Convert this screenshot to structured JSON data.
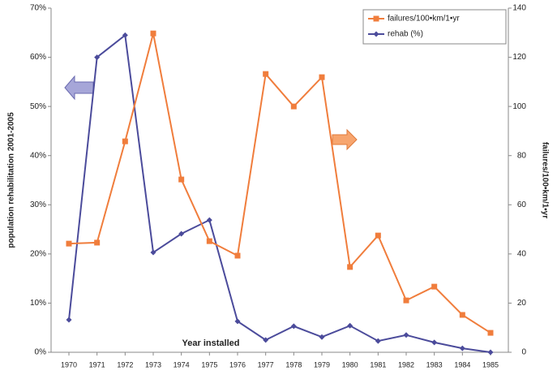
{
  "chart_data": {
    "type": "line",
    "ylabel": "population rehabilitation 2001-2005",
    "y2label": "failures/100•km/1•yr",
    "xlabel": "Year installed",
    "categories": [
      "1970",
      "1971",
      "1972",
      "1973",
      "1974",
      "1975",
      "1976",
      "1977",
      "1978",
      "1979",
      "1980",
      "1981",
      "1982",
      "1983",
      "1984",
      "1985"
    ],
    "series": [
      {
        "name": "failures/100•km/1•yr",
        "color": "#f07d3c",
        "axis": "y2",
        "marker": "square",
        "values": [
          44.2,
          44.6,
          85.8,
          129.7,
          70.3,
          45.2,
          39.3,
          113.2,
          100,
          111.9,
          34.7,
          47.5,
          21.1,
          26.7,
          15.2,
          7.9
        ]
      },
      {
        "name": "rehab (%)",
        "color": "#4b4b9b",
        "axis": "y",
        "marker": "diamond",
        "values": [
          6.6,
          60,
          64.5,
          20.3,
          24.1,
          26.9,
          6.3,
          2.5,
          5.3,
          3.1,
          5.4,
          2.3,
          3.5,
          2.0,
          0.8,
          0
        ]
      }
    ],
    "ylim": [
      0,
      70
    ],
    "yticks": [
      {
        "value": 0,
        "label": "0%"
      },
      {
        "value": 10,
        "label": "10%"
      },
      {
        "value": 20,
        "label": "20%"
      },
      {
        "value": 30,
        "label": "30%"
      },
      {
        "value": 40,
        "label": "40%"
      },
      {
        "value": 50,
        "label": "50%"
      },
      {
        "value": 60,
        "label": "60%"
      },
      {
        "value": 70,
        "label": "70%"
      }
    ],
    "y2lim": [
      0,
      140
    ],
    "y2ticks": [
      0,
      20,
      40,
      60,
      80,
      100,
      120,
      140
    ],
    "legend": "top-right",
    "grid": false
  }
}
